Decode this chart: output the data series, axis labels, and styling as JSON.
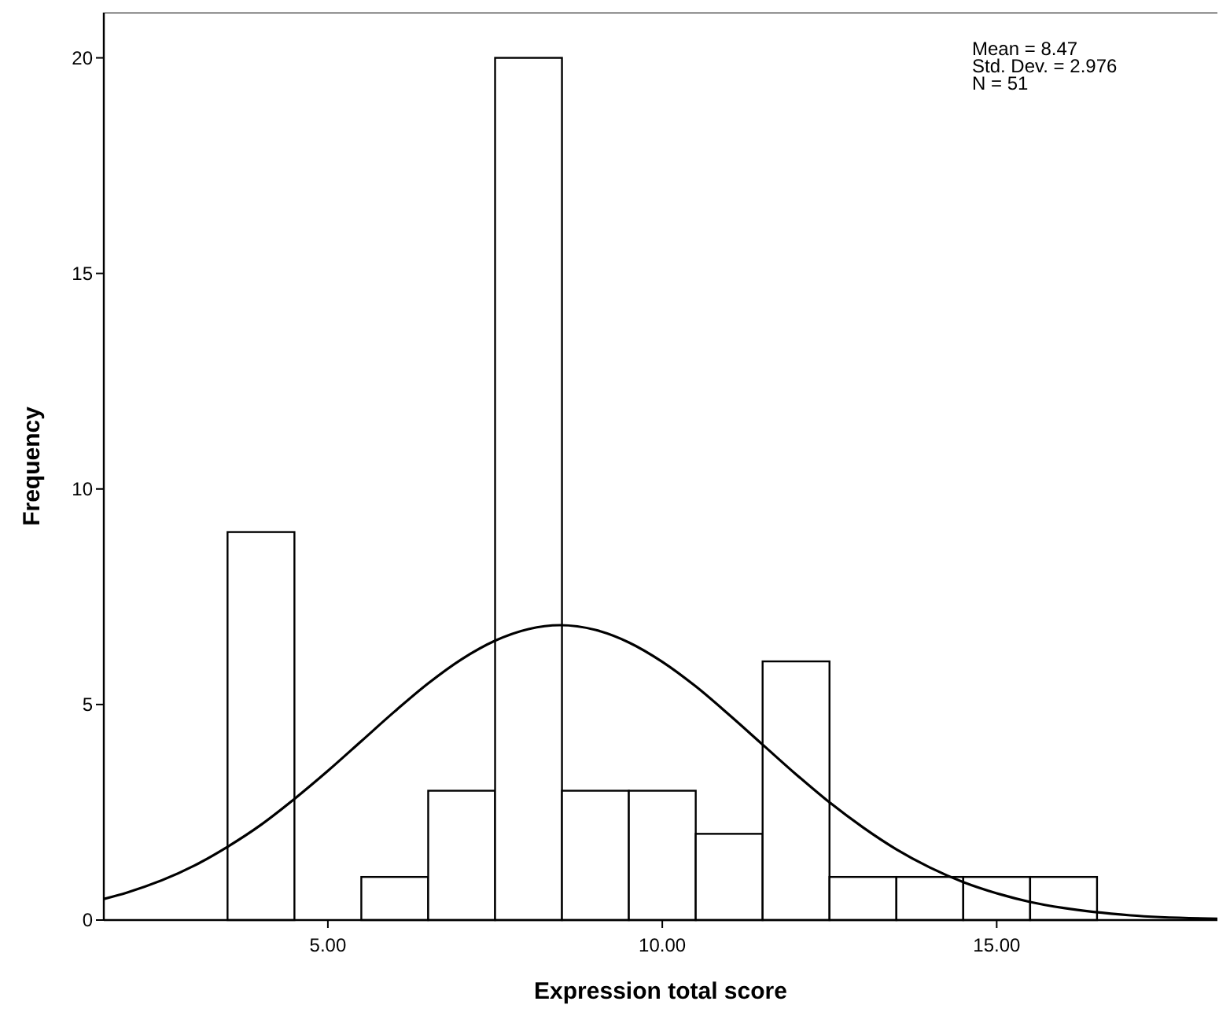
{
  "chart_data": {
    "type": "histogram",
    "xlabel": "Expression total score",
    "ylabel": "Frequency",
    "bins": [
      3.5,
      4.5,
      5.5,
      6.5,
      7.5,
      8.5,
      9.5,
      10.5,
      11.5,
      12.5,
      13.5,
      14.5,
      15.5,
      16.5
    ],
    "values": [
      9,
      0,
      1,
      3,
      20,
      3,
      3,
      2,
      6,
      1,
      1,
      1,
      1
    ],
    "color": "#ffffff",
    "series": [
      {
        "type": "line",
        "color": "#000000",
        "x": [
          1.65,
          2,
          3,
          3.5,
          4,
          4.5,
          5,
          5.5,
          6,
          6.5,
          7,
          7.5,
          8,
          8.47,
          9,
          9.5,
          10,
          10.5,
          11,
          11.5,
          12,
          12.5,
          13,
          13.5,
          14,
          14.5,
          15,
          15.5,
          16,
          17,
          18.3
        ],
        "values": [
          0.49,
          0.64,
          1.26,
          1.7,
          2.21,
          2.81,
          3.46,
          4.15,
          4.84,
          5.49,
          6.05,
          6.48,
          6.75,
          6.84,
          6.73,
          6.44,
          5.99,
          5.42,
          4.76,
          4.07,
          3.38,
          2.73,
          2.15,
          1.64,
          1.22,
          0.88,
          0.62,
          0.42,
          0.28,
          0.11,
          0.03
        ]
      }
    ],
    "xlim": [
      1.65,
      18.3
    ],
    "ylim": [
      0,
      21.05
    ],
    "xticks": [
      {
        "value": 5,
        "label": "5.00"
      },
      {
        "value": 10,
        "label": "10.00"
      },
      {
        "value": 15,
        "label": "15.00"
      }
    ],
    "yticks": [
      0,
      5,
      10,
      15,
      20
    ],
    "annotations": [
      "Mean = 8.47",
      "Std. Dev. = 2.976",
      "N = 51"
    ],
    "grid": false
  }
}
